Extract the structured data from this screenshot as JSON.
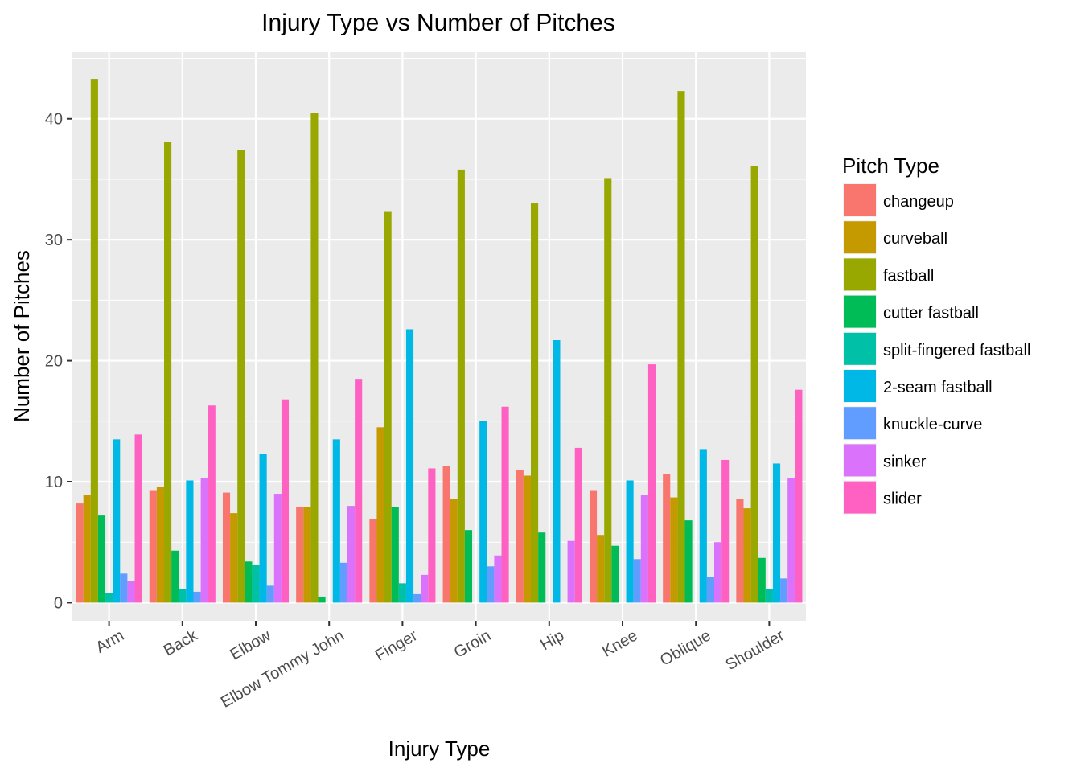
{
  "chart_data": {
    "type": "bar",
    "title": "Injury Type vs Number of Pitches",
    "xlabel": "Injury Type",
    "ylabel": "Number of Pitches",
    "ylim": [
      -1.5,
      45.5
    ],
    "yticks": [
      0,
      10,
      20,
      30,
      40
    ],
    "grid": true,
    "legend_title": "Pitch Type",
    "legend_position": "right",
    "categories": [
      "Arm",
      "Back",
      "Elbow",
      "Elbow Tommy John",
      "Finger",
      "Groin",
      "Hip",
      "Knee",
      "Oblique",
      "Shoulder"
    ],
    "series": [
      {
        "name": "changeup",
        "color": "#F8766D",
        "values": [
          8.2,
          9.3,
          9.1,
          7.9,
          6.9,
          11.3,
          11.0,
          9.3,
          10.6,
          8.6
        ]
      },
      {
        "name": "curveball",
        "color": "#C49A00",
        "values": [
          8.9,
          9.6,
          7.4,
          7.9,
          14.5,
          8.6,
          10.5,
          5.6,
          8.7,
          7.8
        ]
      },
      {
        "name": "fastball",
        "color": "#99A800",
        "values": [
          43.3,
          38.1,
          37.4,
          40.5,
          32.3,
          35.8,
          33.0,
          35.1,
          42.3,
          36.1
        ]
      },
      {
        "name": "cutter fastball",
        "color": "#00BC56",
        "values": [
          7.2,
          4.3,
          3.4,
          0.5,
          7.9,
          6.0,
          5.8,
          4.7,
          6.8,
          3.7
        ]
      },
      {
        "name": "split-fingered fastball",
        "color": "#00C1A7",
        "values": [
          0.8,
          1.1,
          3.1,
          0,
          1.6,
          0,
          0,
          0,
          0,
          1.1
        ]
      },
      {
        "name": "2-seam fastball",
        "color": "#00B8E5",
        "values": [
          13.5,
          10.1,
          12.3,
          13.5,
          22.6,
          15.0,
          21.7,
          10.1,
          12.7,
          11.5
        ]
      },
      {
        "name": "knuckle-curve",
        "color": "#619CFF",
        "values": [
          2.4,
          0.9,
          1.4,
          3.3,
          0.7,
          3.0,
          0,
          3.6,
          2.1,
          2.0
        ]
      },
      {
        "name": "sinker",
        "color": "#DB72FB",
        "values": [
          1.8,
          10.3,
          9.0,
          8.0,
          2.3,
          3.9,
          5.1,
          8.9,
          5.0,
          10.3
        ]
      },
      {
        "name": "slider",
        "color": "#FF61C3",
        "values": [
          13.9,
          16.3,
          16.8,
          18.5,
          11.1,
          16.2,
          12.8,
          19.7,
          11.8,
          17.6
        ]
      }
    ]
  }
}
